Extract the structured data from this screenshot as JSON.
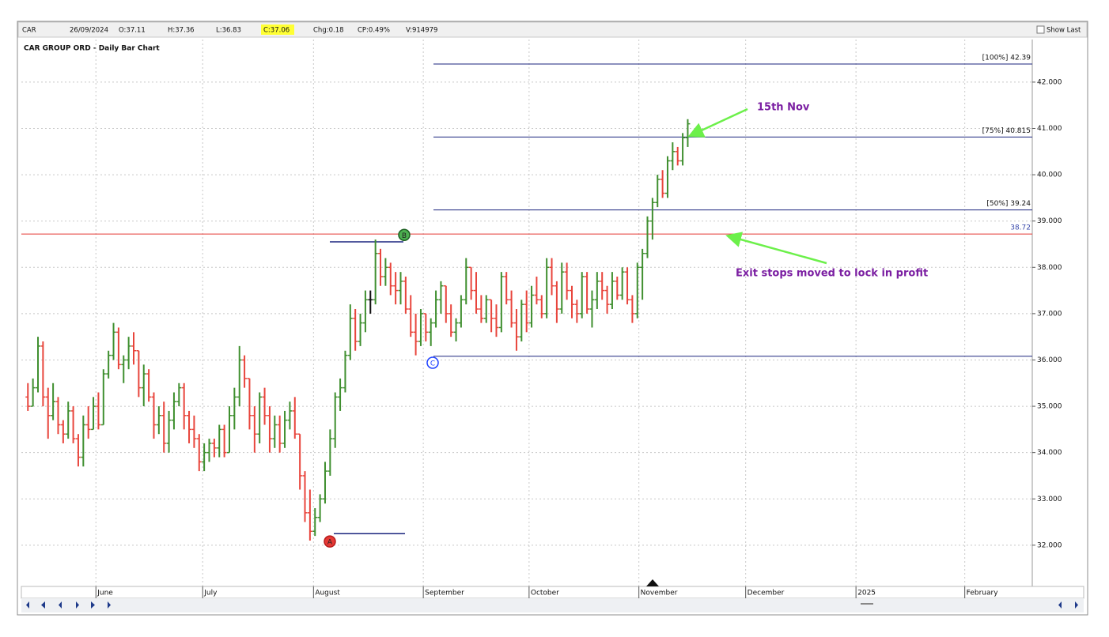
{
  "header": {
    "symbol": "CAR",
    "date": "26/09/2024",
    "open": "O:37.11",
    "high": "H:37.36",
    "low": "L:36.83",
    "close": "C:37.06",
    "change": "Chg:0.18",
    "change_pct": "CP:0.49%",
    "volume": "V:914979",
    "show_last": "Show Last"
  },
  "chart_data": {
    "type": "ohlc",
    "title": "CAR GROUP ORD - Daily Bar Chart",
    "up_color": "#3f8f2f",
    "down_color": "#e8453c",
    "flat_color": "#111111",
    "grid": true,
    "ylim": [
      31.11,
      42.92
    ],
    "yticks": [
      {
        "value": 32,
        "label": "32.000"
      },
      {
        "value": 33,
        "label": "33.000"
      },
      {
        "value": 34,
        "label": "34.000"
      },
      {
        "value": 35,
        "label": "35.000"
      },
      {
        "value": 36,
        "label": "36.000"
      },
      {
        "value": 37,
        "label": "37.000"
      },
      {
        "value": 38,
        "label": "38.000"
      },
      {
        "value": 39,
        "label": "39.000"
      },
      {
        "value": 40,
        "label": "40.000"
      },
      {
        "value": 41,
        "label": "41.000"
      },
      {
        "value": 42,
        "label": "42.000"
      }
    ],
    "xlim": [
      -1.3,
      199.4
    ],
    "xticks": [
      {
        "value": 13.5,
        "label": "June"
      },
      {
        "value": 34.7,
        "label": "July"
      },
      {
        "value": 56.7,
        "label": "August"
      },
      {
        "value": 78.5,
        "label": "September"
      },
      {
        "value": 99.5,
        "label": "October"
      },
      {
        "value": 121.3,
        "label": "November"
      },
      {
        "value": 142.5,
        "label": "December"
      },
      {
        "value": 164.4,
        "label": "2025"
      },
      {
        "value": 186,
        "label": "February"
      }
    ],
    "bars": [
      [
        35.2,
        35.5,
        34.9,
        35.0
      ],
      [
        35.0,
        35.6,
        35.0,
        35.4
      ],
      [
        35.4,
        36.5,
        35.3,
        36.3
      ],
      [
        36.3,
        36.4,
        35.0,
        35.2
      ],
      [
        35.2,
        35.4,
        34.3,
        34.8
      ],
      [
        34.8,
        35.5,
        34.7,
        35.1
      ],
      [
        35.1,
        35.2,
        34.4,
        34.6
      ],
      [
        34.6,
        34.7,
        34.2,
        34.4
      ],
      [
        34.4,
        35.1,
        34.3,
        34.9
      ],
      [
        34.9,
        35.0,
        34.2,
        34.3
      ],
      [
        34.3,
        34.4,
        33.7,
        33.9
      ],
      [
        33.9,
        34.8,
        33.7,
        34.6
      ],
      [
        34.6,
        35.0,
        34.3,
        34.5
      ],
      [
        34.5,
        35.2,
        34.5,
        35.0
      ],
      [
        35.0,
        35.3,
        34.5,
        34.6
      ],
      [
        34.6,
        35.8,
        34.6,
        35.7
      ],
      [
        35.7,
        36.2,
        35.6,
        36.1
      ],
      [
        36.1,
        36.8,
        36.0,
        36.6
      ],
      [
        36.6,
        36.7,
        35.8,
        35.9
      ],
      [
        35.9,
        36.1,
        35.5,
        36.0
      ],
      [
        36.0,
        36.5,
        35.8,
        36.3
      ],
      [
        36.3,
        36.6,
        35.9,
        36.2
      ],
      [
        36.2,
        36.2,
        35.2,
        35.4
      ],
      [
        35.4,
        35.9,
        35.0,
        35.7
      ],
      [
        35.7,
        35.8,
        35.1,
        35.2
      ],
      [
        35.2,
        35.3,
        34.3,
        34.6
      ],
      [
        34.6,
        35.0,
        34.4,
        34.8
      ],
      [
        34.8,
        35.1,
        34.0,
        34.2
      ],
      [
        34.2,
        34.9,
        34.0,
        34.7
      ],
      [
        34.7,
        35.3,
        34.5,
        35.1
      ],
      [
        35.1,
        35.5,
        35.0,
        35.4
      ],
      [
        35.4,
        35.5,
        34.5,
        34.8
      ],
      [
        34.8,
        34.9,
        34.2,
        34.5
      ],
      [
        34.5,
        34.8,
        34.1,
        34.3
      ],
      [
        34.3,
        34.4,
        33.6,
        33.8
      ],
      [
        33.8,
        34.2,
        33.6,
        34.0
      ],
      [
        34.0,
        34.3,
        33.8,
        34.2
      ],
      [
        34.2,
        34.3,
        33.9,
        34.1
      ],
      [
        34.1,
        34.6,
        33.9,
        34.5
      ],
      [
        34.5,
        34.6,
        33.9,
        34.0
      ],
      [
        34.0,
        35.0,
        34.0,
        34.8
      ],
      [
        34.8,
        35.4,
        34.5,
        35.2
      ],
      [
        35.2,
        36.3,
        35.0,
        36.0
      ],
      [
        36.0,
        36.1,
        35.4,
        35.6
      ],
      [
        35.6,
        35.6,
        34.5,
        34.8
      ],
      [
        34.8,
        35.0,
        34.0,
        34.4
      ],
      [
        34.4,
        35.3,
        34.2,
        35.2
      ],
      [
        35.2,
        35.4,
        34.6,
        34.8
      ],
      [
        34.8,
        35.0,
        34.0,
        34.3
      ],
      [
        34.3,
        34.8,
        34.1,
        34.6
      ],
      [
        34.6,
        34.8,
        34.0,
        34.2
      ],
      [
        34.2,
        34.9,
        34.1,
        34.7
      ],
      [
        34.7,
        35.1,
        34.5,
        34.9
      ],
      [
        34.9,
        35.2,
        34.3,
        34.4
      ],
      [
        34.4,
        34.4,
        33.2,
        33.5
      ],
      [
        33.5,
        33.6,
        32.5,
        32.7
      ],
      [
        32.7,
        33.2,
        32.1,
        32.3
      ],
      [
        32.3,
        32.8,
        32.2,
        32.6
      ],
      [
        32.6,
        33.1,
        32.5,
        33.0
      ],
      [
        33.0,
        33.8,
        32.9,
        33.6
      ],
      [
        33.6,
        34.5,
        33.5,
        34.3
      ],
      [
        34.3,
        35.3,
        34.1,
        35.2
      ],
      [
        35.2,
        35.6,
        34.9,
        35.4
      ],
      [
        35.4,
        36.2,
        35.3,
        36.1
      ],
      [
        36.1,
        37.2,
        36.0,
        36.9
      ],
      [
        36.9,
        37.1,
        36.2,
        36.4
      ],
      [
        36.4,
        37.0,
        36.3,
        36.8
      ],
      [
        36.8,
        37.5,
        36.6,
        37.3
      ],
      [
        37.3,
        37.5,
        37.0,
        37.3
      ],
      [
        37.3,
        38.6,
        37.2,
        38.3
      ],
      [
        38.3,
        38.4,
        37.6,
        37.8
      ],
      [
        37.8,
        38.2,
        37.6,
        38.0
      ],
      [
        38.0,
        38.1,
        37.4,
        37.6
      ],
      [
        37.6,
        37.9,
        37.2,
        37.5
      ],
      [
        37.5,
        37.9,
        37.2,
        37.7
      ],
      [
        37.7,
        37.8,
        37.0,
        37.1
      ],
      [
        37.1,
        37.4,
        36.5,
        36.6
      ],
      [
        36.6,
        37.0,
        36.1,
        36.4
      ],
      [
        36.4,
        37.1,
        36.3,
        37.0
      ],
      [
        37.0,
        37.0,
        36.4,
        36.6
      ],
      [
        36.6,
        36.9,
        36.3,
        36.8
      ],
      [
        36.8,
        37.5,
        36.7,
        37.3
      ],
      [
        37.3,
        37.7,
        37.0,
        37.6
      ],
      [
        37.6,
        37.6,
        36.8,
        37.0
      ],
      [
        37.0,
        37.2,
        36.5,
        36.6
      ],
      [
        36.6,
        36.9,
        36.4,
        36.8
      ],
      [
        36.8,
        37.4,
        36.7,
        37.3
      ],
      [
        37.3,
        38.2,
        37.2,
        38.0
      ],
      [
        38.0,
        38.0,
        37.3,
        37.5
      ],
      [
        37.5,
        37.9,
        37.0,
        37.1
      ],
      [
        37.1,
        37.4,
        36.8,
        36.9
      ],
      [
        36.9,
        37.4,
        36.8,
        37.3
      ],
      [
        37.3,
        37.3,
        36.6,
        36.9
      ],
      [
        36.9,
        37.2,
        36.5,
        36.7
      ],
      [
        36.7,
        37.9,
        36.6,
        37.8
      ],
      [
        37.8,
        37.9,
        37.2,
        37.3
      ],
      [
        37.3,
        37.5,
        36.7,
        36.8
      ],
      [
        36.8,
        37.1,
        36.2,
        36.5
      ],
      [
        36.5,
        37.3,
        36.4,
        37.2
      ],
      [
        37.2,
        37.5,
        36.6,
        36.8
      ],
      [
        36.8,
        37.6,
        36.7,
        37.4
      ],
      [
        37.4,
        37.8,
        37.2,
        37.3
      ],
      [
        37.3,
        37.4,
        36.9,
        37.0
      ],
      [
        37.0,
        38.2,
        36.9,
        38.0
      ],
      [
        38.0,
        38.2,
        37.4,
        37.6
      ],
      [
        37.6,
        37.7,
        36.8,
        37.1
      ],
      [
        37.1,
        38.1,
        37.0,
        37.9
      ],
      [
        37.9,
        38.1,
        37.3,
        37.5
      ],
      [
        37.5,
        37.6,
        36.9,
        37.2
      ],
      [
        37.2,
        37.3,
        36.8,
        37.0
      ],
      [
        37.0,
        37.9,
        36.9,
        37.8
      ],
      [
        37.8,
        37.9,
        37.0,
        37.1
      ],
      [
        37.1,
        37.5,
        36.7,
        37.3
      ],
      [
        37.3,
        37.9,
        37.1,
        37.7
      ],
      [
        37.7,
        37.9,
        37.3,
        37.5
      ],
      [
        37.5,
        37.6,
        37.0,
        37.2
      ],
      [
        37.2,
        37.9,
        37.1,
        37.7
      ],
      [
        37.7,
        37.8,
        37.3,
        37.4
      ],
      [
        37.4,
        38.0,
        37.3,
        37.9
      ],
      [
        37.9,
        38.0,
        37.2,
        37.3
      ],
      [
        37.3,
        37.4,
        36.8,
        37.0
      ],
      [
        37.0,
        38.1,
        36.9,
        38.0
      ],
      [
        38.0,
        38.4,
        37.3,
        38.3
      ],
      [
        38.3,
        39.1,
        38.2,
        39.0
      ],
      [
        39.0,
        39.5,
        38.6,
        39.4
      ],
      [
        39.4,
        40.0,
        39.3,
        39.9
      ],
      [
        39.9,
        40.1,
        39.5,
        39.6
      ],
      [
        39.6,
        40.4,
        39.5,
        40.3
      ],
      [
        40.3,
        40.7,
        40.1,
        40.5
      ],
      [
        40.5,
        40.6,
        40.2,
        40.3
      ],
      [
        40.3,
        40.9,
        40.2,
        40.8
      ],
      [
        40.8,
        41.2,
        40.6,
        41.1
      ]
    ],
    "fib_levels": [
      {
        "value": 42.39,
        "label": "[100%] 42.39"
      },
      {
        "value": 40.815,
        "label": "[75%] 40.815"
      },
      {
        "value": 39.24,
        "label": "[50%] 39.24"
      }
    ],
    "c_level": 36.08,
    "a_level": 32.25,
    "b_level": 38.55,
    "stop_level": 38.72,
    "points": [
      {
        "label": "A",
        "value": 32.08
      },
      {
        "label": "B",
        "value": 38.7
      },
      {
        "label": "C",
        "value": 35.94
      }
    ],
    "annotations": [
      "15th Nov",
      "Exit stops moved to lock in profit"
    ]
  }
}
